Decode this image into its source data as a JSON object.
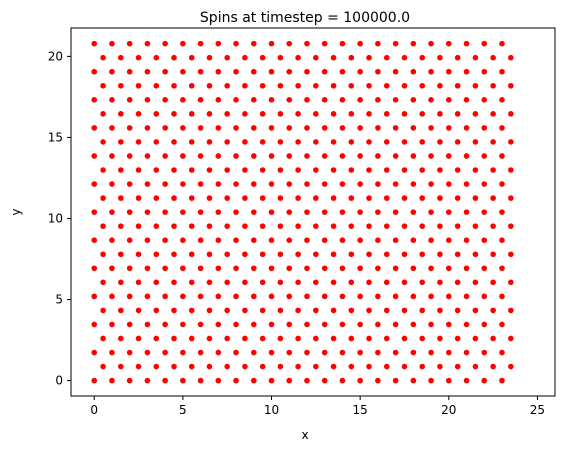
{
  "chart_data": {
    "type": "scatter",
    "title": "Spins at timestep = 100000.0",
    "xlabel": "x",
    "ylabel": "y",
    "xlim": [
      -1.31,
      25.99
    ],
    "ylim": [
      -0.95,
      21.75
    ],
    "x_ticks": [
      0,
      5,
      10,
      15,
      20,
      25
    ],
    "y_ticks": [
      0,
      5,
      10,
      15,
      20
    ],
    "x_tick_labels": [
      "0",
      "5",
      "10",
      "15",
      "20",
      "25"
    ],
    "y_tick_labels": [
      "0",
      "5",
      "10",
      "15",
      "20"
    ],
    "grid": false,
    "legend": false,
    "marker": {
      "shape": "circle",
      "color": "#ff0000"
    },
    "lattice": {
      "description_type": "triangular_lattice",
      "a": 1.0,
      "rows": 25,
      "cols": 24,
      "row_spacing": 0.8660254,
      "even_row_x_start": 0.0,
      "odd_row_x_start": 0.5,
      "bond_pair_step": 1.0
    },
    "points": []
  }
}
